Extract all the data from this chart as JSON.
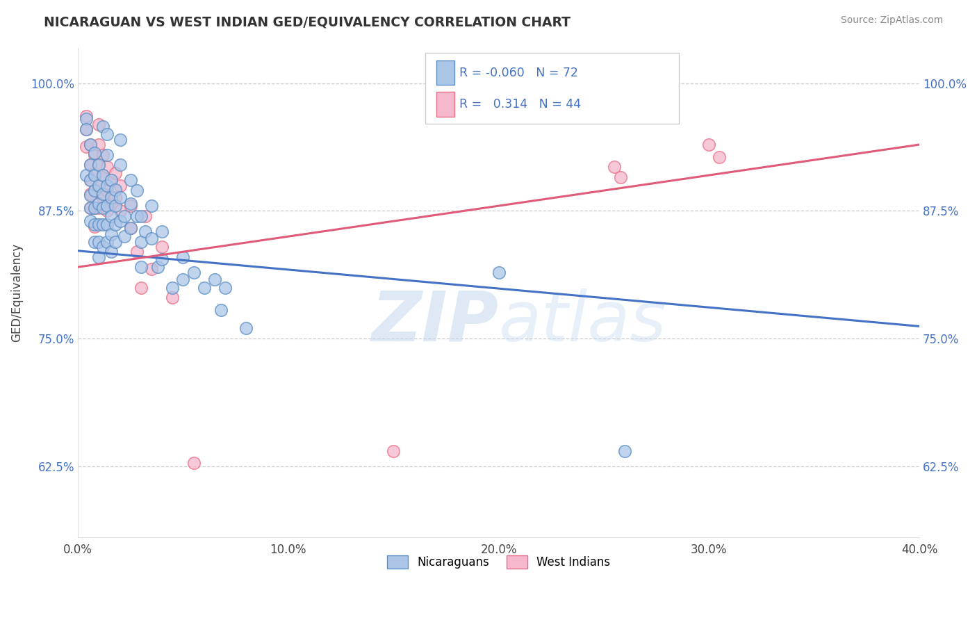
{
  "title": "NICARAGUAN VS WEST INDIAN GED/EQUIVALENCY CORRELATION CHART",
  "source": "Source: ZipAtlas.com",
  "ylabel": "GED/Equivalency",
  "xlim": [
    0.0,
    0.4
  ],
  "ylim": [
    0.555,
    1.035
  ],
  "yticks": [
    0.625,
    0.75,
    0.875,
    1.0
  ],
  "ytick_labels": [
    "62.5%",
    "75.0%",
    "87.5%",
    "100.0%"
  ],
  "xticks": [
    0.0,
    0.1,
    0.2,
    0.3,
    0.4
  ],
  "xtick_labels": [
    "0.0%",
    "10.0%",
    "20.0%",
    "30.0%",
    "40.0%"
  ],
  "blue_color": "#adc6e8",
  "pink_color": "#f5b8cc",
  "blue_edge_color": "#5b8ec4",
  "pink_edge_color": "#e8708a",
  "blue_line_color": "#4472c4",
  "pink_line_color": "#e05a7a",
  "legend_R_blue": "-0.060",
  "legend_N_blue": "72",
  "legend_R_pink": "0.314",
  "legend_N_pink": "44",
  "legend_label_blue": "Nicaraguans",
  "legend_label_pink": "West Indians",
  "watermark": "ZIPatlas",
  "blue_line": [
    0.0,
    0.836,
    0.4,
    0.762
  ],
  "pink_line": [
    0.0,
    0.82,
    0.4,
    0.94
  ],
  "blue_dots": [
    [
      0.004,
      0.965
    ],
    [
      0.004,
      0.955
    ],
    [
      0.004,
      0.91
    ],
    [
      0.006,
      0.94
    ],
    [
      0.006,
      0.92
    ],
    [
      0.006,
      0.905
    ],
    [
      0.006,
      0.89
    ],
    [
      0.006,
      0.878
    ],
    [
      0.006,
      0.865
    ],
    [
      0.008,
      0.932
    ],
    [
      0.008,
      0.91
    ],
    [
      0.008,
      0.895
    ],
    [
      0.008,
      0.878
    ],
    [
      0.008,
      0.862
    ],
    [
      0.008,
      0.845
    ],
    [
      0.01,
      0.92
    ],
    [
      0.01,
      0.9
    ],
    [
      0.01,
      0.882
    ],
    [
      0.01,
      0.862
    ],
    [
      0.01,
      0.845
    ],
    [
      0.01,
      0.83
    ],
    [
      0.012,
      0.958
    ],
    [
      0.012,
      0.91
    ],
    [
      0.012,
      0.892
    ],
    [
      0.012,
      0.878
    ],
    [
      0.012,
      0.862
    ],
    [
      0.012,
      0.84
    ],
    [
      0.014,
      0.95
    ],
    [
      0.014,
      0.93
    ],
    [
      0.014,
      0.9
    ],
    [
      0.014,
      0.88
    ],
    [
      0.014,
      0.862
    ],
    [
      0.014,
      0.845
    ],
    [
      0.016,
      0.905
    ],
    [
      0.016,
      0.888
    ],
    [
      0.016,
      0.87
    ],
    [
      0.016,
      0.852
    ],
    [
      0.016,
      0.835
    ],
    [
      0.018,
      0.896
    ],
    [
      0.018,
      0.88
    ],
    [
      0.018,
      0.862
    ],
    [
      0.018,
      0.845
    ],
    [
      0.02,
      0.945
    ],
    [
      0.02,
      0.92
    ],
    [
      0.02,
      0.888
    ],
    [
      0.02,
      0.865
    ],
    [
      0.022,
      0.87
    ],
    [
      0.022,
      0.85
    ],
    [
      0.025,
      0.905
    ],
    [
      0.025,
      0.882
    ],
    [
      0.025,
      0.858
    ],
    [
      0.028,
      0.895
    ],
    [
      0.028,
      0.87
    ],
    [
      0.03,
      0.87
    ],
    [
      0.03,
      0.845
    ],
    [
      0.03,
      0.82
    ],
    [
      0.032,
      0.855
    ],
    [
      0.035,
      0.88
    ],
    [
      0.035,
      0.848
    ],
    [
      0.038,
      0.82
    ],
    [
      0.04,
      0.855
    ],
    [
      0.04,
      0.828
    ],
    [
      0.045,
      0.8
    ],
    [
      0.05,
      0.83
    ],
    [
      0.05,
      0.808
    ],
    [
      0.055,
      0.815
    ],
    [
      0.06,
      0.8
    ],
    [
      0.065,
      0.808
    ],
    [
      0.068,
      0.778
    ],
    [
      0.07,
      0.8
    ],
    [
      0.08,
      0.76
    ],
    [
      0.2,
      0.815
    ],
    [
      0.26,
      0.64
    ]
  ],
  "pink_dots": [
    [
      0.004,
      0.968
    ],
    [
      0.004,
      0.955
    ],
    [
      0.004,
      0.938
    ],
    [
      0.006,
      0.94
    ],
    [
      0.006,
      0.92
    ],
    [
      0.006,
      0.905
    ],
    [
      0.006,
      0.892
    ],
    [
      0.006,
      0.878
    ],
    [
      0.008,
      0.93
    ],
    [
      0.008,
      0.912
    ],
    [
      0.008,
      0.895
    ],
    [
      0.008,
      0.878
    ],
    [
      0.008,
      0.86
    ],
    [
      0.01,
      0.96
    ],
    [
      0.01,
      0.94
    ],
    [
      0.01,
      0.92
    ],
    [
      0.01,
      0.9
    ],
    [
      0.01,
      0.878
    ],
    [
      0.012,
      0.93
    ],
    [
      0.012,
      0.91
    ],
    [
      0.012,
      0.888
    ],
    [
      0.014,
      0.918
    ],
    [
      0.014,
      0.895
    ],
    [
      0.014,
      0.875
    ],
    [
      0.016,
      0.905
    ],
    [
      0.016,
      0.882
    ],
    [
      0.018,
      0.912
    ],
    [
      0.018,
      0.888
    ],
    [
      0.02,
      0.9
    ],
    [
      0.02,
      0.875
    ],
    [
      0.025,
      0.88
    ],
    [
      0.025,
      0.858
    ],
    [
      0.028,
      0.835
    ],
    [
      0.03,
      0.8
    ],
    [
      0.032,
      0.87
    ],
    [
      0.035,
      0.818
    ],
    [
      0.04,
      0.84
    ],
    [
      0.045,
      0.79
    ],
    [
      0.055,
      0.628
    ],
    [
      0.15,
      0.64
    ],
    [
      0.255,
      0.918
    ],
    [
      0.258,
      0.908
    ],
    [
      0.3,
      0.94
    ],
    [
      0.305,
      0.928
    ]
  ]
}
